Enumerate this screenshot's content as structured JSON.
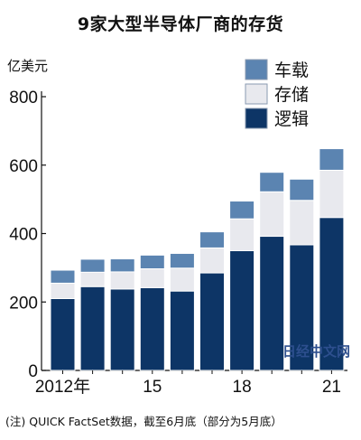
{
  "page": {
    "title": "9家大型半导体厂商的存货",
    "unit_label": "亿美元",
    "note": "(注) QUICK FactSet数据，截至6月底（部分为5月底）",
    "watermark": "日经中文网"
  },
  "colors": {
    "logic": "#0d3566",
    "storage": "#e8e9ee",
    "vehicle": "#5b84b1",
    "stroke": "#ffffff"
  },
  "chart_data": {
    "type": "bar",
    "stacked": true,
    "title": "9家大型半导体厂商的存货",
    "ylabel": "亿美元",
    "ylim": [
      0,
      800
    ],
    "yticks": [
      0,
      200,
      400,
      600,
      800
    ],
    "categories": [
      "2012",
      "2013",
      "2014",
      "2015",
      "2016",
      "2017",
      "2018",
      "2019",
      "2020",
      "2021"
    ],
    "x_tick_labels": [
      {
        "index": 0,
        "label": "2012年"
      },
      {
        "index": 3,
        "label": "15"
      },
      {
        "index": 6,
        "label": "18"
      },
      {
        "index": 9,
        "label": "21"
      }
    ],
    "series": [
      {
        "name": "逻辑",
        "color": "#0d3566",
        "values": [
          210,
          245,
          238,
          242,
          232,
          285,
          350,
          392,
          367,
          447
        ]
      },
      {
        "name": "存储",
        "color": "#e8e9ee",
        "values": [
          45,
          42,
          50,
          55,
          67,
          73,
          93,
          130,
          130,
          138
        ]
      },
      {
        "name": "车载",
        "color": "#5b84b1",
        "values": [
          38,
          38,
          38,
          40,
          43,
          47,
          52,
          57,
          62,
          63
        ]
      }
    ],
    "legend": {
      "placement": "top-right",
      "order": [
        "车载",
        "存储",
        "逻辑"
      ]
    },
    "grid": false
  }
}
